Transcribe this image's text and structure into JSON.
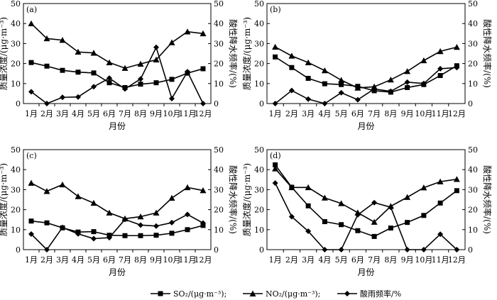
{
  "legend": {
    "so2": "SO₂/(μg·m⁻³);",
    "no2": "NO₂/(μg·m⁻³);",
    "acid": "酸雨频率/%"
  },
  "chart_data": [
    {
      "type": "line",
      "panel_label": "(a)",
      "categories": [
        "1月",
        "2月",
        "3月",
        "4月",
        "5月",
        "6月",
        "7月",
        "8月",
        "9月",
        "10月",
        "11月",
        "12月"
      ],
      "xlabel": "月份",
      "ylabel_left": "质量浓度/(μg·m⁻³)",
      "ylabel_right": "酸性降水频率/(%)",
      "ylim": [
        0,
        50
      ],
      "yticks": [
        0,
        10,
        20,
        30,
        40,
        50
      ],
      "series": [
        {
          "name": "SO₂/(μg·m⁻³)",
          "marker": "square",
          "values": [
            20.5,
            18.7,
            16.6,
            15.7,
            15.3,
            10.4,
            8.0,
            9.7,
            10.4,
            12.1,
            15.2,
            17.4
          ]
        },
        {
          "name": "NO₂/(μg·m⁻³)",
          "marker": "triangle",
          "values": [
            40.0,
            32.5,
            31.7,
            25.8,
            25.3,
            20.5,
            17.7,
            19.8,
            21.9,
            30.5,
            35.9,
            35.0
          ]
        },
        {
          "name": "酸雨频率/%",
          "marker": "diamond",
          "values": [
            5.9,
            0.0,
            3.1,
            3.3,
            8.4,
            12.7,
            7.3,
            12.3,
            28.1,
            2.5,
            15.9,
            0.0
          ]
        }
      ]
    },
    {
      "type": "line",
      "panel_label": "(b)",
      "categories": [
        "1月",
        "2月",
        "3月",
        "4月",
        "5月",
        "6月",
        "7月",
        "8月",
        "9月",
        "10月",
        "11月",
        "12月"
      ],
      "xlabel": "月份",
      "ylabel_left": "质量浓度/(μg·m⁻³)",
      "ylabel_right": "酸性降水频率/(%)",
      "ylim": [
        0,
        50
      ],
      "yticks": [
        0,
        10,
        20,
        30,
        40,
        50
      ],
      "series": [
        {
          "name": "SO₂/(μg·m⁻³)",
          "marker": "square",
          "values": [
            23.3,
            18.0,
            12.6,
            9.9,
            9.5,
            8.6,
            6.4,
            5.7,
            8.0,
            9.5,
            14.0,
            18.9
          ]
        },
        {
          "name": "NO₂/(μg·m⁻³)",
          "marker": "triangle",
          "values": [
            28.3,
            23.8,
            20.5,
            16.5,
            11.7,
            7.8,
            8.4,
            11.9,
            16.1,
            21.5,
            26.1,
            28.2
          ]
        },
        {
          "name": "酸雨频率/%",
          "marker": "diamond",
          "values": [
            0.0,
            6.5,
            2.2,
            0.0,
            5.4,
            1.9,
            7.3,
            6.1,
            10.7,
            10.0,
            17.4,
            18.0
          ]
        }
      ]
    },
    {
      "type": "line",
      "panel_label": "(c)",
      "categories": [
        "1月",
        "2月",
        "3月",
        "4月",
        "5月",
        "6月",
        "7月",
        "8月",
        "9月",
        "10月",
        "11月",
        "12月"
      ],
      "xlabel": "月份",
      "ylabel_left": "质量浓度/(μg·m⁻³)",
      "ylabel_right": "酸性降水频率/(%)",
      "ylim": [
        0,
        50
      ],
      "yticks": [
        0,
        10,
        20,
        30,
        40,
        50
      ],
      "series": [
        {
          "name": "SO₂/(μg·m⁻³)",
          "marker": "square",
          "values": [
            14.3,
            13.4,
            10.9,
            8.8,
            9.0,
            7.2,
            7.0,
            7.0,
            7.2,
            8.2,
            10.0,
            12.1
          ]
        },
        {
          "name": "NO₂/(μg·m⁻³)",
          "marker": "triangle",
          "values": [
            33.3,
            29.2,
            32.5,
            26.6,
            23.3,
            18.4,
            15.5,
            16.5,
            18.4,
            25.8,
            31.1,
            29.6
          ]
        },
        {
          "name": "酸雨频率/%",
          "marker": "diamond",
          "values": [
            7.8,
            0.0,
            11.1,
            7.9,
            5.5,
            6.0,
            15.1,
            12.3,
            11.8,
            13.5,
            17.6,
            13.3
          ]
        }
      ]
    },
    {
      "type": "line",
      "panel_label": "(d)",
      "categories": [
        "1月",
        "2月",
        "3月",
        "4月",
        "5月",
        "6月",
        "7月",
        "8月",
        "9月",
        "10月",
        "11月",
        "12月"
      ],
      "xlabel": "月份",
      "ylabel_left": "质量浓度/(μg·m⁻³)",
      "ylabel_right": "酸性降水频率/(%)",
      "ylim": [
        0,
        50
      ],
      "yticks": [
        0,
        10,
        20,
        30,
        40,
        50
      ],
      "series": [
        {
          "name": "SO₂/(μg·m⁻³)",
          "marker": "square",
          "values": [
            42.4,
            31.2,
            21.9,
            14.0,
            12.5,
            9.5,
            6.6,
            10.8,
            13.6,
            17.1,
            23.3,
            29.5
          ]
        },
        {
          "name": "NO₂/(μg·m⁻³)",
          "marker": "triangle",
          "values": [
            40.5,
            31.1,
            31.1,
            25.9,
            23.1,
            18.5,
            13.8,
            21.7,
            26.2,
            31.0,
            34.0,
            35.2
          ]
        },
        {
          "name": "酸雨频率/%",
          "marker": "diamond",
          "values": [
            33.3,
            16.5,
            9.2,
            0.0,
            0.0,
            17.4,
            23.5,
            21.2,
            0.0,
            0.0,
            7.7,
            0.0
          ]
        }
      ]
    }
  ]
}
